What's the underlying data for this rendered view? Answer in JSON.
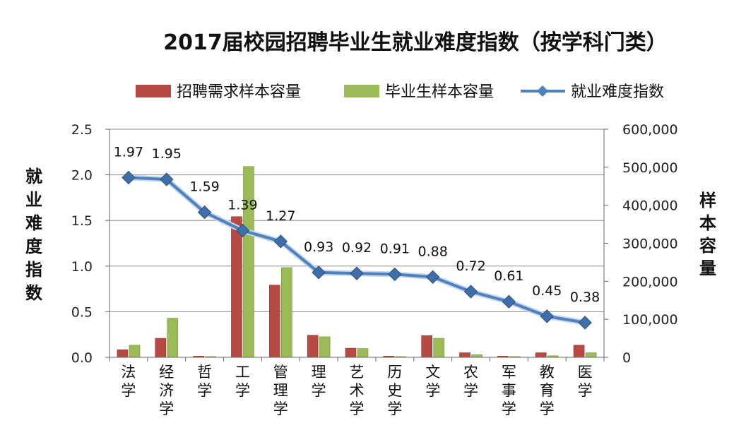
{
  "chart_data": {
    "type": "bar+line",
    "title": "2017届校园招聘毕业生就业难度指数（按学科门类）",
    "categories": [
      "法学",
      "经济学",
      "哲学",
      "工学",
      "管理学",
      "理学",
      "艺术学",
      "历史学",
      "文学",
      "农学",
      "军事学",
      "教育学",
      "医学"
    ],
    "series": [
      {
        "name": "招聘需求样本容量",
        "kind": "bar",
        "axis": "right",
        "color": "#b84a45",
        "values": [
          20000,
          50000,
          3000,
          370000,
          190000,
          58000,
          24000,
          3000,
          57000,
          12000,
          3000,
          12000,
          32000
        ]
      },
      {
        "name": "毕业生样本容量",
        "kind": "bar",
        "axis": "right",
        "color": "#9bbb59",
        "values": [
          32000,
          103000,
          2000,
          502000,
          236000,
          54000,
          23000,
          2000,
          50000,
          7000,
          2000,
          4000,
          12000
        ]
      },
      {
        "name": "就业难度指数",
        "kind": "line",
        "axis": "left",
        "color": "#4f81bd",
        "values": [
          1.97,
          1.95,
          1.59,
          1.39,
          1.27,
          0.93,
          0.92,
          0.91,
          0.88,
          0.72,
          0.61,
          0.45,
          0.38
        ]
      }
    ],
    "data_labels": [
      "1.97",
      "1.95",
      "1.59",
      "1.39",
      "1.27",
      "0.93",
      "0.92",
      "0.91",
      "0.88",
      "0.72",
      "0.61",
      "0.45",
      "0.38"
    ],
    "y_left": {
      "label": "就业难度指数",
      "ylim": [
        0,
        2.5
      ],
      "ticks": [
        "0.0",
        "0.5",
        "1.0",
        "1.5",
        "2.0",
        "2.5"
      ]
    },
    "y_right": {
      "label": "样本容量",
      "ylim": [
        0,
        600000
      ],
      "ticks": [
        "0",
        "100,000",
        "200,000",
        "300,000",
        "400,000",
        "500,000",
        "600,000"
      ]
    },
    "grid": true,
    "legend_position": "top"
  }
}
